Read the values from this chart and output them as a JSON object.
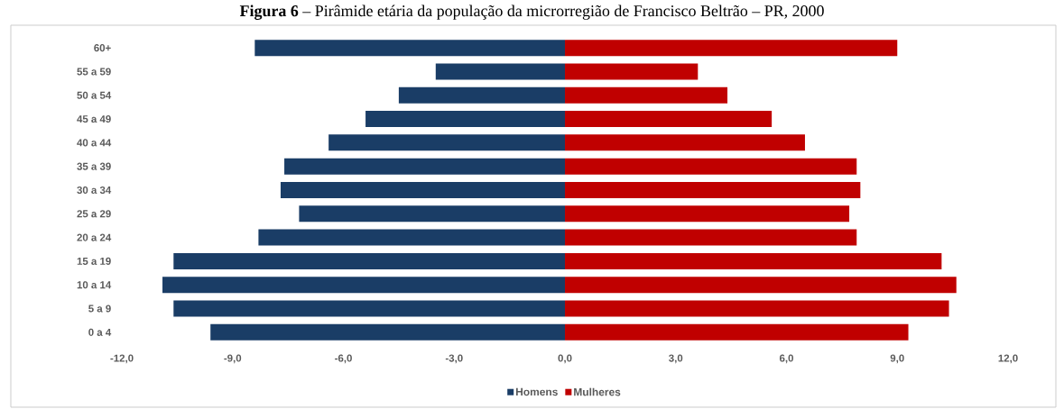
{
  "chart_data": {
    "type": "bar",
    "orientation": "horizontal",
    "title": "**Figura 6** – Pirâmide etária da população da microrregião de Francisco Beltrão – PR, 2000",
    "categories": [
      "60+",
      "55 a 59",
      "50 a 54",
      "45 a 49",
      "40 a 44",
      "35 a 39",
      "30 a 34",
      "25 a 29",
      "20 a 24",
      "15 a 19",
      "10 a 14",
      "5 a 9",
      "0 a 4"
    ],
    "series": [
      {
        "name": "Homens",
        "color": "#1a3d66",
        "values": [
          -8.4,
          -3.5,
          -4.5,
          -5.4,
          -6.4,
          -7.6,
          -7.7,
          -7.2,
          -8.3,
          -10.6,
          -10.9,
          -10.6,
          -9.6
        ]
      },
      {
        "name": "Mulheres",
        "color": "#c00000",
        "values": [
          9.0,
          3.6,
          4.4,
          5.6,
          6.5,
          7.9,
          8.0,
          7.7,
          7.9,
          10.2,
          10.6,
          10.4,
          9.3
        ]
      }
    ],
    "xlim": [
      -12,
      12
    ],
    "xticks": [
      {
        "value": -12,
        "label": "-12,0"
      },
      {
        "value": -9,
        "label": "-9,0"
      },
      {
        "value": -6,
        "label": "-6,0"
      },
      {
        "value": -3,
        "label": "-3,0"
      },
      {
        "value": 0,
        "label": "0,0"
      },
      {
        "value": 3,
        "label": "3,0"
      },
      {
        "value": 6,
        "label": "6,0"
      },
      {
        "value": 9,
        "label": "9,0"
      },
      {
        "value": 12,
        "label": "12,0"
      }
    ],
    "stacked": true,
    "grid": false,
    "legend": "bottom"
  }
}
